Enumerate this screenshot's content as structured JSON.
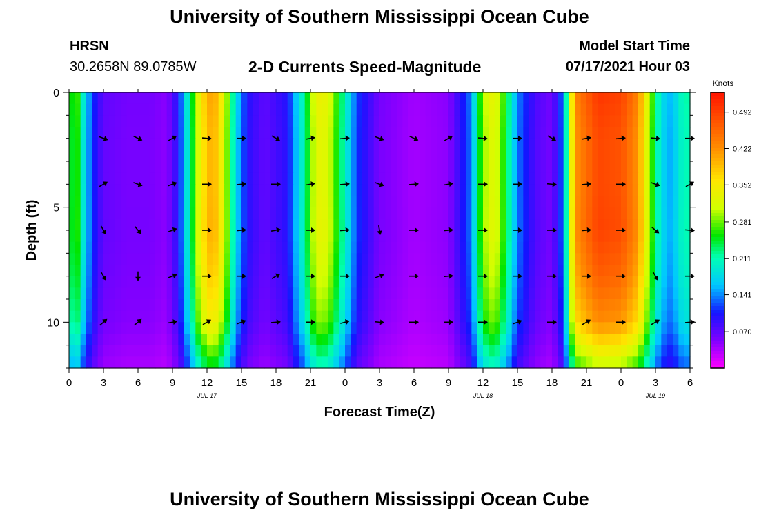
{
  "header": {
    "title": "University of Southern Mississippi Ocean Cube",
    "station": "HRSN",
    "coords": "30.2658N  89.0785W",
    "plot_title": "2-D Currents Speed-Magnitude",
    "model_label": "Model Start Time",
    "model_time": "07/17/2021 Hour 03"
  },
  "footer": {
    "title": "University of Southern Mississippi Ocean Cube"
  },
  "chart_data": {
    "type": "heatmap",
    "title": "2-D Currents Speed-Magnitude",
    "xlabel": "Forecast Time(Z)",
    "ylabel": "Depth (ft)",
    "x_range_hours": [
      0,
      54
    ],
    "ylim": [
      12,
      0
    ],
    "x_ticks": [
      "0",
      "3",
      "6",
      "9",
      "12",
      "15",
      "18",
      "21",
      "0",
      "3",
      "6",
      "9",
      "12",
      "15",
      "18",
      "21",
      "0",
      "3",
      "6"
    ],
    "y_ticks": [
      "0",
      "5",
      "10"
    ],
    "date_labels": [
      {
        "hour": 12,
        "label": "JUL 17"
      },
      {
        "hour": 36,
        "label": "JUL 18"
      },
      {
        "hour": 51,
        "label": "JUL 19"
      }
    ],
    "colorbar": {
      "unit": "Knots",
      "ticks": [
        "0.492",
        "0.422",
        "0.352",
        "0.281",
        "0.211",
        "0.141",
        "0.070"
      ],
      "range": [
        0.0,
        0.53
      ]
    },
    "speed_profile": {
      "hours": [
        0,
        0.5,
        1,
        2,
        3,
        5,
        7,
        8.5,
        9.5,
        10.5,
        11.5,
        12.5,
        13.5,
        14.5,
        15.5,
        17,
        19,
        20.5,
        21.5,
        22.5,
        23.5,
        25,
        27,
        30,
        33,
        35,
        36,
        37,
        38,
        39,
        40.5,
        42,
        43,
        44,
        46,
        48,
        49.5,
        50.5,
        51.5,
        52.5,
        53,
        54
      ],
      "speeds": [
        0.2,
        0.31,
        0.22,
        0.12,
        0.07,
        0.06,
        0.06,
        0.05,
        0.1,
        0.22,
        0.36,
        0.42,
        0.33,
        0.18,
        0.1,
        0.07,
        0.1,
        0.22,
        0.34,
        0.33,
        0.25,
        0.12,
        0.06,
        0.04,
        0.05,
        0.14,
        0.3,
        0.34,
        0.25,
        0.14,
        0.08,
        0.06,
        0.14,
        0.43,
        0.5,
        0.49,
        0.43,
        0.3,
        0.18,
        0.15,
        0.2,
        0.22
      ]
    },
    "depth_profile": {
      "depths": [
        0,
        2,
        4,
        6,
        8,
        10,
        12
      ],
      "factors": [
        1.0,
        0.97,
        0.97,
        0.98,
        0.93,
        0.85,
        0.6
      ]
    },
    "vectors": {
      "hours": [
        3,
        6,
        9,
        12,
        15,
        18,
        21,
        24,
        27,
        30,
        33,
        36,
        39,
        42,
        45,
        48,
        51,
        54
      ],
      "depths": [
        2,
        4,
        6,
        8,
        10
      ],
      "directions_deg": [
        [
          20,
          25,
          330,
          5,
          0,
          30,
          350,
          355,
          20,
          25,
          330,
          5,
          0,
          30,
          350,
          355,
          5,
          0
        ],
        [
          330,
          20,
          340,
          0,
          355,
          0,
          350,
          355,
          20,
          355,
          350,
          0,
          0,
          5,
          355,
          0,
          20,
          330
        ],
        [
          60,
          50,
          340,
          0,
          355,
          350,
          0,
          355,
          80,
          0,
          355,
          0,
          0,
          0,
          355,
          0,
          40,
          5
        ],
        [
          60,
          90,
          340,
          0,
          0,
          330,
          0,
          0,
          340,
          0,
          355,
          0,
          0,
          0,
          0,
          0,
          60,
          0
        ],
        [
          320,
          320,
          350,
          330,
          340,
          355,
          0,
          345,
          5,
          0,
          0,
          0,
          340,
          0,
          330,
          0,
          330,
          355
        ]
      ]
    }
  }
}
